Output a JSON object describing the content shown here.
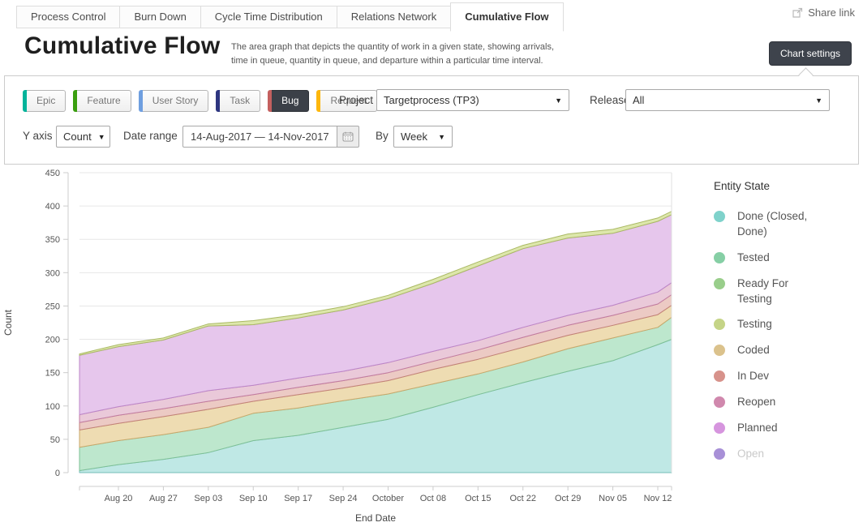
{
  "tabs": [
    {
      "label": "Process Control",
      "active": false
    },
    {
      "label": "Burn Down",
      "active": false
    },
    {
      "label": "Cycle Time Distribution",
      "active": false
    },
    {
      "label": "Relations Network",
      "active": false
    },
    {
      "label": "Cumulative Flow",
      "active": true
    }
  ],
  "share_link": {
    "label": "Share link"
  },
  "header": {
    "title": "Cumulative Flow",
    "description_line1": "The area graph that depicts the quantity of work in a given state, showing arrivals,",
    "description_line2": "time in queue, quantity in queue, and departure within a particular time interval.",
    "settings_button": "Chart settings"
  },
  "filters": {
    "entity_types": [
      {
        "label": "Epic",
        "color": "#00b39a",
        "selected": false
      },
      {
        "label": "Feature",
        "color": "#3a9e0f",
        "selected": false
      },
      {
        "label": "User Story",
        "color": "#6f9fe0",
        "selected": false
      },
      {
        "label": "Task",
        "color": "#2e3680",
        "selected": false
      },
      {
        "label": "Bug",
        "color": "#c4605f",
        "selected": true
      },
      {
        "label": "Request",
        "color": "#fdb70d",
        "selected": false
      }
    ],
    "project": {
      "label": "Project",
      "value": "Targetprocess (TP3)"
    },
    "release": {
      "label": "Release",
      "value": "All"
    },
    "y_axis": {
      "label": "Y axis",
      "value": "Count"
    },
    "date_range": {
      "label": "Date range",
      "value": "14-Aug-2017 — 14-Nov-2017"
    },
    "by": {
      "label": "By",
      "value": "Week"
    }
  },
  "chart_data": {
    "type": "area",
    "stacked": true,
    "xlabel": "End Date",
    "ylabel": "Count",
    "ylim": [
      0,
      450
    ],
    "y_ticks": [
      0,
      50,
      100,
      150,
      200,
      250,
      300,
      350,
      400,
      450
    ],
    "grid": "horizontal",
    "x": [
      "Aug 14",
      "Aug 20",
      "Aug 27",
      "Sep 03",
      "Sep 10",
      "Sep 17",
      "Sep 24",
      "Oct 01",
      "Oct 08",
      "Oct 15",
      "Oct 22",
      "Oct 29",
      "Nov 05",
      "Nov 12",
      "Nov 14"
    ],
    "x_tick_labels": [
      "Aug 20",
      "Aug 27",
      "Sep 03",
      "Sep 10",
      "Sep 17",
      "Sep 24",
      "October",
      "Oct 08",
      "Oct 15",
      "Oct 22",
      "Oct 29",
      "Nov 05",
      "Nov 12"
    ],
    "series": [
      {
        "name": "Done (Closed, Done)",
        "fill": "#bfe8e5",
        "line": "#74bcb8",
        "values": [
          3,
          12,
          20,
          30,
          48,
          56,
          68,
          80,
          98,
          117,
          135,
          152,
          168,
          192,
          200
        ]
      },
      {
        "name": "Tested",
        "fill": "#bde7cd",
        "line": "#7dc096",
        "values": [
          35,
          36,
          37,
          38,
          41,
          41,
          40,
          38,
          35,
          31,
          31,
          34,
          34,
          26,
          33
        ]
      },
      {
        "name": "Ready For Testing",
        "fill": "#cfe8c4",
        "line": "#8abd77",
        "values": [
          0,
          0,
          0,
          0,
          0,
          0,
          0,
          0,
          0,
          0,
          0,
          0,
          0,
          0,
          0
        ]
      },
      {
        "name": "Coded",
        "fill": "#eedcb2",
        "line": "#c9a76a",
        "values": [
          26,
          26,
          27,
          27,
          18,
          20,
          19,
          20,
          22,
          22,
          22,
          20,
          19,
          19,
          18
        ]
      },
      {
        "name": "In Dev",
        "fill": "#eccac4",
        "line": "#c28179",
        "values": [
          11,
          12,
          12,
          12,
          10,
          11,
          11,
          12,
          12,
          14,
          15,
          15,
          15,
          16,
          16
        ]
      },
      {
        "name": "Reopen",
        "fill": "#eac9d9",
        "line": "#c17ba1",
        "values": [
          12,
          13,
          14,
          16,
          14,
          14,
          14,
          15,
          15,
          14,
          15,
          15,
          15,
          18,
          18
        ]
      },
      {
        "name": "Planned",
        "fill": "#e6c6ec",
        "line": "#bc86c9",
        "values": [
          89,
          90,
          89,
          97,
          91,
          90,
          92,
          96,
          102,
          112,
          118,
          116,
          108,
          106,
          102
        ]
      },
      {
        "name": "Testing",
        "fill": "#dde7ab",
        "line": "#aab964",
        "values": [
          2,
          3,
          3,
          3,
          6,
          5,
          5,
          5,
          6,
          6,
          5,
          6,
          6,
          5,
          5
        ]
      },
      {
        "name": "Open",
        "fill": "#d7c9ef",
        "line": "#9a80ca",
        "values": [
          0,
          0,
          0,
          0,
          0,
          0,
          0,
          0,
          0,
          0,
          0,
          0,
          0,
          0,
          0
        ]
      }
    ]
  },
  "legend": {
    "title": "Entity State",
    "items": [
      {
        "label": "Done (Closed, Done)",
        "color": "#7fd2cb",
        "muted": false
      },
      {
        "label": "Tested",
        "color": "#86cfa5",
        "muted": false
      },
      {
        "label": "Ready For Testing",
        "color": "#99ce8b",
        "muted": false
      },
      {
        "label": "Testing",
        "color": "#c5d487",
        "muted": false
      },
      {
        "label": "Coded",
        "color": "#dbc28c",
        "muted": false
      },
      {
        "label": "In Dev",
        "color": "#d7928b",
        "muted": false
      },
      {
        "label": "Reopen",
        "color": "#d088ad",
        "muted": false
      },
      {
        "label": "Planned",
        "color": "#d695de",
        "muted": false
      },
      {
        "label": "Open",
        "color": "#a890d7",
        "muted": true
      }
    ]
  }
}
